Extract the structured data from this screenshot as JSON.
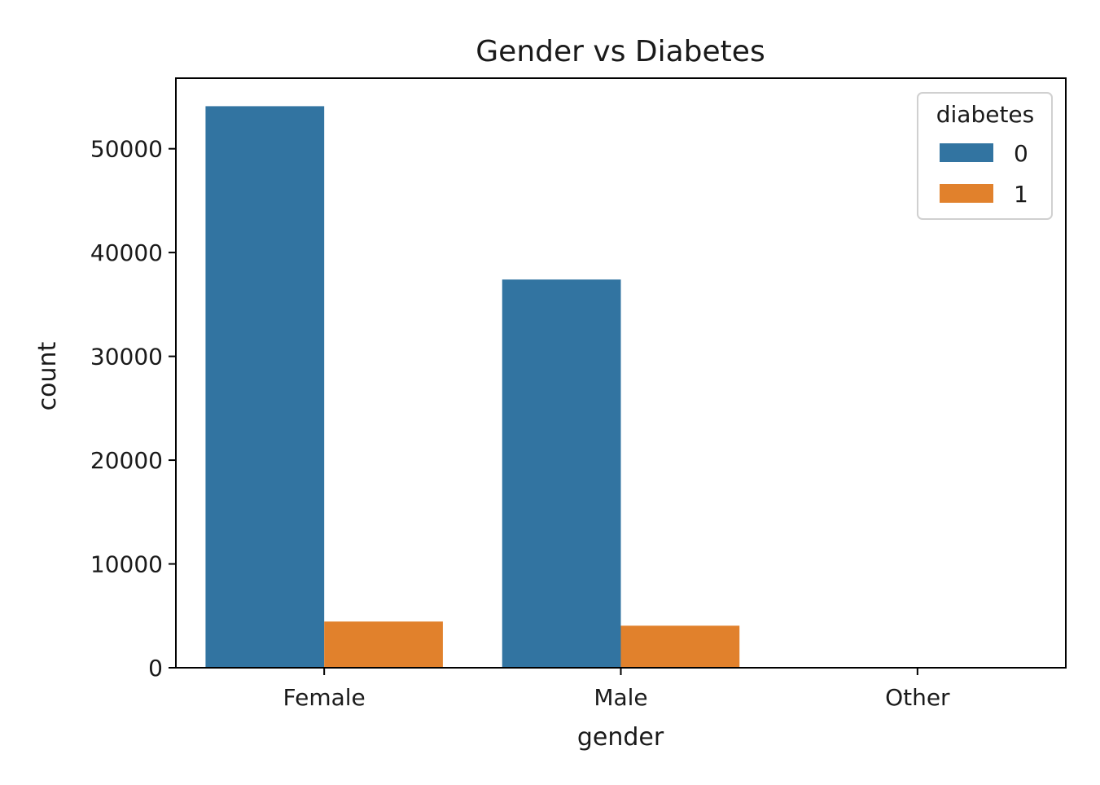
{
  "chart_data": {
    "type": "bar",
    "title": "Gender vs Diabetes",
    "xlabel": "gender",
    "ylabel": "count",
    "categories": [
      "Female",
      "Male",
      "Other"
    ],
    "series": [
      {
        "name": "0",
        "values": [
          54100,
          37400,
          18
        ],
        "color": "#3274a1"
      },
      {
        "name": "1",
        "values": [
          4450,
          4050,
          0
        ],
        "color": "#e1812c"
      }
    ],
    "ylim": [
      0,
      56800
    ],
    "yticks": [
      0,
      10000,
      20000,
      30000,
      40000,
      50000
    ],
    "legend": {
      "title": "diabetes",
      "placement": "top-right"
    },
    "grid": false
  }
}
